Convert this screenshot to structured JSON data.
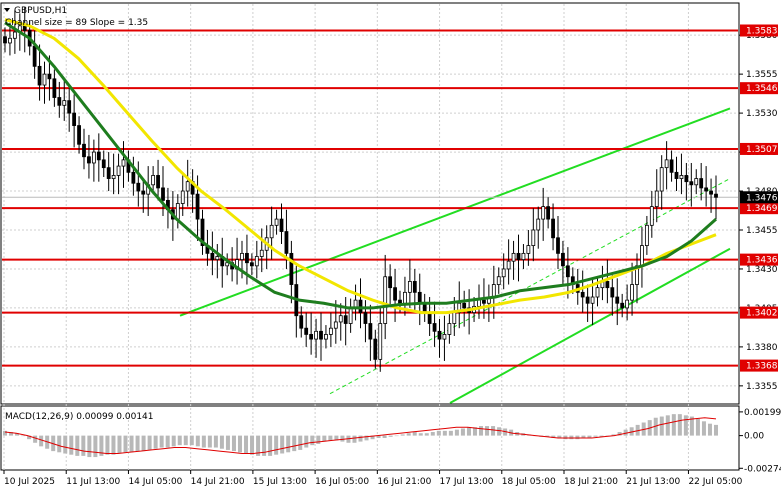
{
  "window": {
    "symbol": "GBPUSD,H1",
    "channel_label": "Channel size = 89 Slope = 1.35",
    "current_price": "1.3476"
  },
  "chart_data": {
    "type": "candlestick",
    "price_axis": {
      "range": [
        1.3344,
        1.36
      ],
      "ticks": [
        "1.3580",
        "1.3555",
        "1.3530",
        "1.3505",
        "1.3480",
        "1.3455",
        "1.3430",
        "1.3405",
        "1.3380",
        "1.3355"
      ]
    },
    "time_axis": {
      "labels": [
        "10 Jul 2025",
        "11 Jul 13:00",
        "14 Jul 05:00",
        "14 Jul 21:00",
        "15 Jul 13:00",
        "16 Jul 05:00",
        "16 Jul 21:00",
        "17 Jul 13:00",
        "18 Jul 05:00",
        "18 Jul 21:00",
        "21 Jul 13:00",
        "22 Jul 05:00"
      ]
    },
    "levels": [
      {
        "label": "1.3583",
        "value": 1.3583
      },
      {
        "label": "1.3546",
        "value": 1.3546
      },
      {
        "label": "1.3507",
        "value": 1.3507
      },
      {
        "label": "1.3469",
        "value": 1.3469
      },
      {
        "label": "1.3436",
        "value": 1.3436
      },
      {
        "label": "1.3402",
        "value": 1.3402
      },
      {
        "label": "1.3368",
        "value": 1.3368
      }
    ],
    "close_series": [
      1.3575,
      1.3578,
      1.3582,
      1.3586,
      1.3583,
      1.3573,
      1.356,
      1.3548,
      1.3555,
      1.3552,
      1.354,
      1.3535,
      1.3538,
      1.353,
      1.3522,
      1.351,
      1.3502,
      1.3498,
      1.3505,
      1.35,
      1.3495,
      1.3488,
      1.349,
      1.3496,
      1.35,
      1.3492,
      1.3485,
      1.348,
      1.3478,
      1.3484,
      1.349,
      1.3482,
      1.3474,
      1.3468,
      1.3462,
      1.3472,
      1.348,
      1.3486,
      1.3478,
      1.3462,
      1.3445,
      1.344,
      1.3436,
      1.3438,
      1.3432,
      1.3434,
      1.343,
      1.3436,
      1.344,
      1.3434,
      1.3432,
      1.3438,
      1.3442,
      1.345,
      1.3458,
      1.3462,
      1.3454,
      1.344,
      1.342,
      1.34,
      1.3392,
      1.3388,
      1.3385,
      1.339,
      1.3385,
      1.3388,
      1.3392,
      1.3396,
      1.34,
      1.3395,
      1.3405,
      1.341,
      1.3402,
      1.3395,
      1.3385,
      1.3372,
      1.3395,
      1.3425,
      1.3418,
      1.341,
      1.3408,
      1.3415,
      1.3422,
      1.3415,
      1.3408,
      1.3402,
      1.3395,
      1.339,
      1.3385,
      1.3388,
      1.3395,
      1.3402,
      1.3408,
      1.3405,
      1.3402,
      1.3406,
      1.341,
      1.3408,
      1.3412,
      1.342,
      1.3425,
      1.343,
      1.3435,
      1.344,
      1.3436,
      1.344,
      1.3445,
      1.3455,
      1.3462,
      1.347,
      1.3462,
      1.345,
      1.344,
      1.3432,
      1.3425,
      1.342,
      1.3415,
      1.3412,
      1.3408,
      1.3412,
      1.3418,
      1.3422,
      1.3418,
      1.3412,
      1.3408,
      1.3405,
      1.341,
      1.342,
      1.3432,
      1.3445,
      1.3458,
      1.347,
      1.348,
      1.3495,
      1.35,
      1.3492,
      1.3488,
      1.349,
      1.3486,
      1.3484,
      1.3488,
      1.3482,
      1.348,
      1.3478,
      1.3476
    ],
    "ma_yellow": {
      "color": "#f2e600",
      "values": [
        1.359,
        1.3586,
        1.3578,
        1.3565,
        1.3548,
        1.353,
        1.3512,
        1.3495,
        1.348,
        1.3468,
        1.3455,
        1.3442,
        1.3432,
        1.3424,
        1.3416,
        1.341,
        1.3405,
        1.3402,
        1.3402,
        1.3404,
        1.3407,
        1.341,
        1.3412,
        1.3415,
        1.342,
        1.3426,
        1.3432,
        1.344,
        1.3446,
        1.3452
      ]
    },
    "ma_green": {
      "color": "#1e7d1e",
      "values": [
        1.3588,
        1.3578,
        1.356,
        1.354,
        1.352,
        1.35,
        1.348,
        1.3462,
        1.3448,
        1.3436,
        1.3425,
        1.3415,
        1.341,
        1.3408,
        1.3405,
        1.3405,
        1.3407,
        1.3408,
        1.3408,
        1.341,
        1.3412,
        1.3416,
        1.3418,
        1.342,
        1.3424,
        1.3428,
        1.3432,
        1.3438,
        1.3448,
        1.3462
      ]
    },
    "macd": {
      "label": "MACD(12,26,9) 0.00099 0.00141",
      "axis_ticks": [
        "0.00199",
        "0.00",
        "-0.00274"
      ],
      "range": [
        -0.0028,
        0.0024
      ],
      "histogram": [
        0.0004,
        0.0003,
        0.0002,
        0.0,
        -0.0003,
        -0.0006,
        -0.0009,
        -0.0011,
        -0.0013,
        -0.0014,
        -0.0015,
        -0.0016,
        -0.0017,
        -0.0017,
        -0.0018,
        -0.0018,
        -0.0017,
        -0.0016,
        -0.0016,
        -0.0015,
        -0.0014,
        -0.0014,
        -0.0013,
        -0.0013,
        -0.0012,
        -0.0011,
        -0.001,
        -0.001,
        -0.0009,
        -0.0008,
        -0.0008,
        -0.0008,
        -0.0009,
        -0.001,
        -0.001,
        -0.001,
        -0.0011,
        -0.0012,
        -0.0013,
        -0.0014,
        -0.0015,
        -0.0016,
        -0.0017,
        -0.0017,
        -0.0017,
        -0.0016,
        -0.0015,
        -0.0014,
        -0.0013,
        -0.0012,
        -0.001,
        -0.0008,
        -0.0007,
        -0.0005,
        -0.0004,
        -0.0004,
        -0.0005,
        -0.0006,
        -0.0006,
        -0.0005,
        -0.0004,
        -0.0003,
        -0.0002,
        -0.0002,
        -0.0001,
        0.0,
        0.0001,
        0.0002,
        0.0003,
        0.0002,
        0.0002,
        0.0003,
        0.0004,
        0.0004,
        0.0004,
        0.0005,
        0.0006,
        0.0007,
        0.0007,
        0.0008,
        0.0008,
        0.0008,
        0.0007,
        0.0006,
        0.0005,
        0.0003,
        0.0002,
        0.0001,
        0.0,
        -0.0001,
        -0.0001,
        -0.0002,
        -0.0002,
        -0.0003,
        -0.0003,
        -0.0003,
        -0.0002,
        -0.0002,
        -0.0001,
        -0.0001,
        0.0,
        0.0001,
        0.0003,
        0.0005,
        0.0007,
        0.0009,
        0.0011,
        0.0013,
        0.0015,
        0.0016,
        0.0017,
        0.0018,
        0.0018,
        0.0017,
        0.0016,
        0.0014,
        0.0012,
        0.001,
        0.0009
      ],
      "signal": [
        0.0003,
        0.0002,
        0.0,
        -0.0003,
        -0.0006,
        -0.0009,
        -0.0011,
        -0.0013,
        -0.0014,
        -0.0015,
        -0.0015,
        -0.0014,
        -0.0013,
        -0.0012,
        -0.0011,
        -0.001,
        -0.001,
        -0.0011,
        -0.0012,
        -0.0013,
        -0.0014,
        -0.0015,
        -0.0015,
        -0.0014,
        -0.0012,
        -0.001,
        -0.0008,
        -0.0006,
        -0.0005,
        -0.0004,
        -0.0003,
        -0.0002,
        -0.0001,
        0.0,
        0.0001,
        0.0002,
        0.0003,
        0.0004,
        0.0005,
        0.0006,
        0.0007,
        0.0007,
        0.0006,
        0.0005,
        0.0004,
        0.0002,
        0.0001,
        0.0,
        -0.0001,
        -0.0002,
        -0.0002,
        -0.0002,
        -0.0002,
        -0.0001,
        0.0,
        0.0002,
        0.0004,
        0.0006,
        0.0009,
        0.0011,
        0.0013,
        0.0014,
        0.0015,
        0.0014
      ]
    }
  },
  "colors": {
    "level_line": "#e00000",
    "level_label_bg": "#e00000",
    "channel": "#22dd22",
    "bull_candle": "#000000",
    "price_label_bg": "#000000"
  }
}
